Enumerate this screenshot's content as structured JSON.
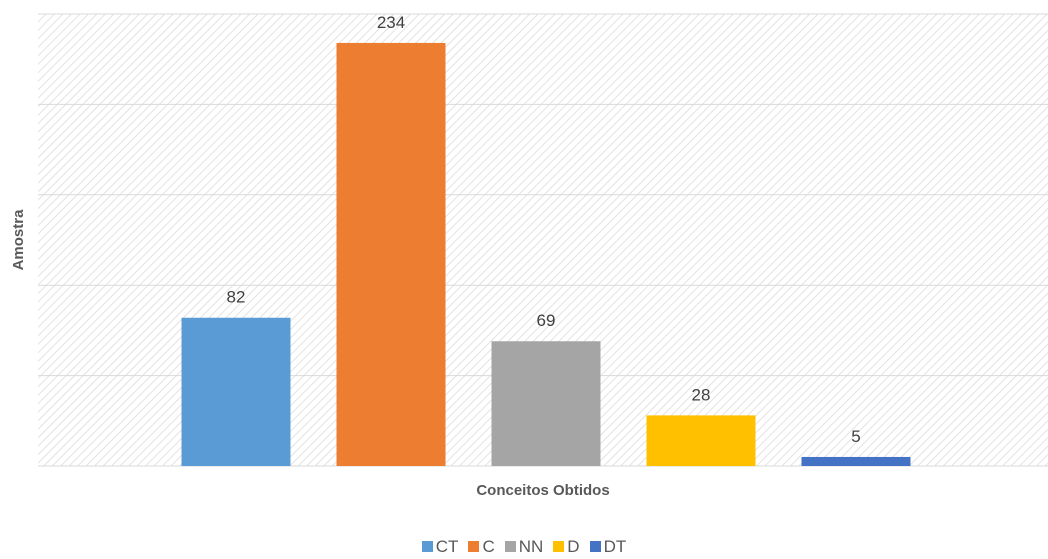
{
  "chart_data": {
    "type": "bar",
    "categories": [
      "CT",
      "C",
      "NN",
      "D",
      "DT"
    ],
    "values": [
      82,
      234,
      69,
      28,
      5
    ],
    "colors": [
      "#5B9BD5",
      "#ED7D31",
      "#A5A5A5",
      "#FFC000",
      "#4472C4"
    ],
    "xlabel": "Conceitos Obtidos",
    "ylabel": "Amostra",
    "ylim": [
      0,
      250
    ],
    "grid": true,
    "background_pattern": "diagonal-hatch",
    "legend_position": "bottom"
  }
}
